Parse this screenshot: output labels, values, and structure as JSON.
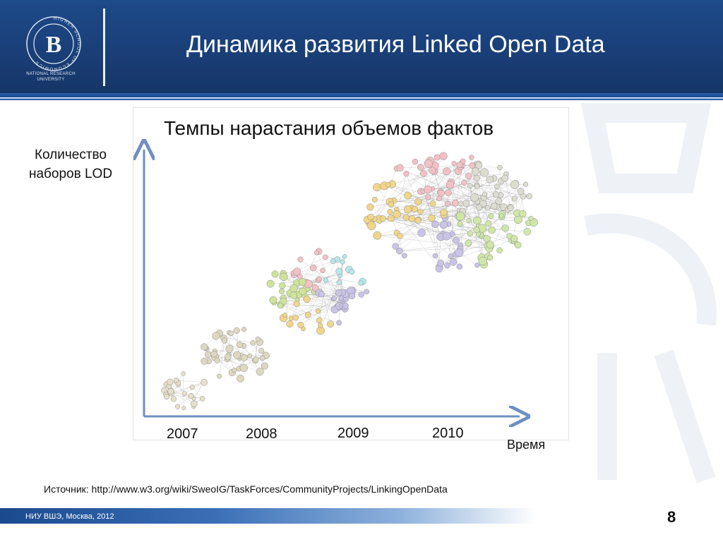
{
  "header": {
    "title": "Динамика развития Linked Open Data",
    "logo_caption_line1": "NATIONAL RESEARCH",
    "logo_caption_line2": "UNIVERSITY",
    "logo_ring_text": "HIGHER SCHOOL OF ECONOMICS",
    "logo_monogram": "В"
  },
  "figure": {
    "title": "Темпы нарастания объемов фактов",
    "y_label_line1": "Количество",
    "y_label_line2": "наборов LOD",
    "x_label": "Время"
  },
  "chart_data": {
    "type": "scatter",
    "title": "Темпы нарастания объемов фактов",
    "ylabel": "Количество наборов LOD",
    "xlabel": "Время",
    "categories": [
      "2007",
      "2008",
      "2009",
      "2010"
    ],
    "colors": {
      "axis": "#6f8fc0",
      "2007": "#e6e0c8",
      "2008": "#ddd8c0",
      "2009": [
        "#c9c3e6",
        "#f0d58a",
        "#cfe39a",
        "#f2c1c6",
        "#b7e7ea"
      ],
      "2010": [
        "#cfe6a8",
        "#c9c3e6",
        "#f0d58a",
        "#f2c1c6",
        "#dcdcd0"
      ]
    }
  },
  "source": "Источник: http://www.w3.org/wiki/SweoIG/TaskForces/CommunityProjects/LinkingOpenData",
  "footer": {
    "text": "НИУ ВШЭ, Москва, 2012",
    "page_number": "8"
  }
}
